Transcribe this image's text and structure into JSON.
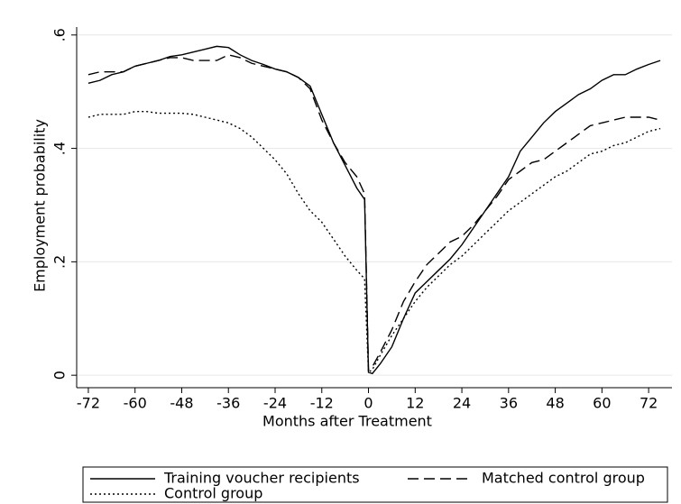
{
  "chart_data": {
    "type": "line",
    "x_label": "Months after Treatment",
    "y_label": "Employment probability",
    "x": [
      -72,
      -69,
      -66,
      -63,
      -60,
      -57,
      -54,
      -51,
      -48,
      -45,
      -42,
      -39,
      -36,
      -33,
      -30,
      -27,
      -24,
      -21,
      -18,
      -15,
      -12,
      -9,
      -6,
      -3,
      -1,
      0,
      1,
      3,
      6,
      9,
      12,
      15,
      18,
      21,
      24,
      27,
      30,
      33,
      36,
      39,
      42,
      45,
      48,
      51,
      54,
      57,
      60,
      63,
      66,
      69,
      72,
      75
    ],
    "series": [
      {
        "name": "Training voucher recipients",
        "color": "#000000",
        "dash": "solid",
        "values": [
          0.515,
          0.52,
          0.53,
          0.535,
          0.545,
          0.55,
          0.555,
          0.562,
          0.565,
          0.57,
          0.575,
          0.58,
          0.578,
          0.565,
          0.555,
          0.548,
          0.54,
          0.535,
          0.525,
          0.51,
          0.46,
          0.41,
          0.37,
          0.33,
          0.31,
          0.005,
          0.003,
          0.02,
          0.05,
          0.1,
          0.145,
          0.165,
          0.185,
          0.205,
          0.23,
          0.26,
          0.29,
          0.32,
          0.35,
          0.395,
          0.42,
          0.445,
          0.465,
          0.48,
          0.495,
          0.505,
          0.52,
          0.53,
          0.53,
          0.54,
          0.548,
          0.555
        ]
      },
      {
        "name": "Matched control group",
        "color": "#000000",
        "dash": "dash",
        "values": [
          0.53,
          0.535,
          0.535,
          0.535,
          0.545,
          0.55,
          0.555,
          0.56,
          0.56,
          0.555,
          0.555,
          0.555,
          0.565,
          0.56,
          0.55,
          0.545,
          0.54,
          0.535,
          0.525,
          0.505,
          0.45,
          0.41,
          0.375,
          0.35,
          0.32,
          0.01,
          0.015,
          0.04,
          0.08,
          0.13,
          0.165,
          0.195,
          0.215,
          0.235,
          0.245,
          0.265,
          0.29,
          0.315,
          0.345,
          0.36,
          0.375,
          0.38,
          0.395,
          0.41,
          0.425,
          0.44,
          0.445,
          0.45,
          0.455,
          0.455,
          0.455,
          0.45
        ]
      },
      {
        "name": "Control group",
        "color": "#000000",
        "dash": "dot",
        "values": [
          0.455,
          0.46,
          0.46,
          0.46,
          0.465,
          0.465,
          0.462,
          0.462,
          0.462,
          0.46,
          0.455,
          0.45,
          0.445,
          0.435,
          0.42,
          0.4,
          0.38,
          0.355,
          0.32,
          0.29,
          0.27,
          0.24,
          0.21,
          0.185,
          0.17,
          0.005,
          0.01,
          0.035,
          0.07,
          0.1,
          0.13,
          0.155,
          0.175,
          0.195,
          0.21,
          0.23,
          0.25,
          0.27,
          0.29,
          0.305,
          0.32,
          0.335,
          0.35,
          0.36,
          0.375,
          0.39,
          0.395,
          0.405,
          0.41,
          0.42,
          0.43,
          0.435
        ]
      }
    ],
    "xlim": [
      -75,
      78
    ],
    "xticks": [
      -72,
      -60,
      -48,
      -36,
      -24,
      -12,
      0,
      12,
      24,
      36,
      48,
      60,
      72
    ],
    "ylim": [
      -0.022,
      0.614
    ],
    "yticks": [
      0,
      {
        "value": 0.2,
        "label": ".2"
      },
      {
        "value": 0.4,
        "label": ".4"
      },
      {
        "value": 0.6,
        "label": ".6"
      }
    ],
    "grid": true,
    "legend": "bottom"
  }
}
